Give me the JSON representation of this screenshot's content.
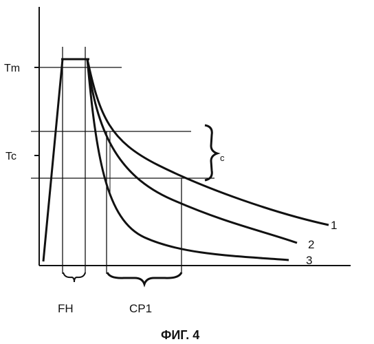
{
  "diagram": {
    "y_axis_labels": {
      "tm": "Tm",
      "tc": "Tc"
    },
    "band_label": "c",
    "interval_labels": {
      "fh": "FH",
      "cp1": "CP1"
    },
    "curve_labels": [
      "1",
      "2",
      "3"
    ],
    "caption": "ФИГ. 4"
  }
}
